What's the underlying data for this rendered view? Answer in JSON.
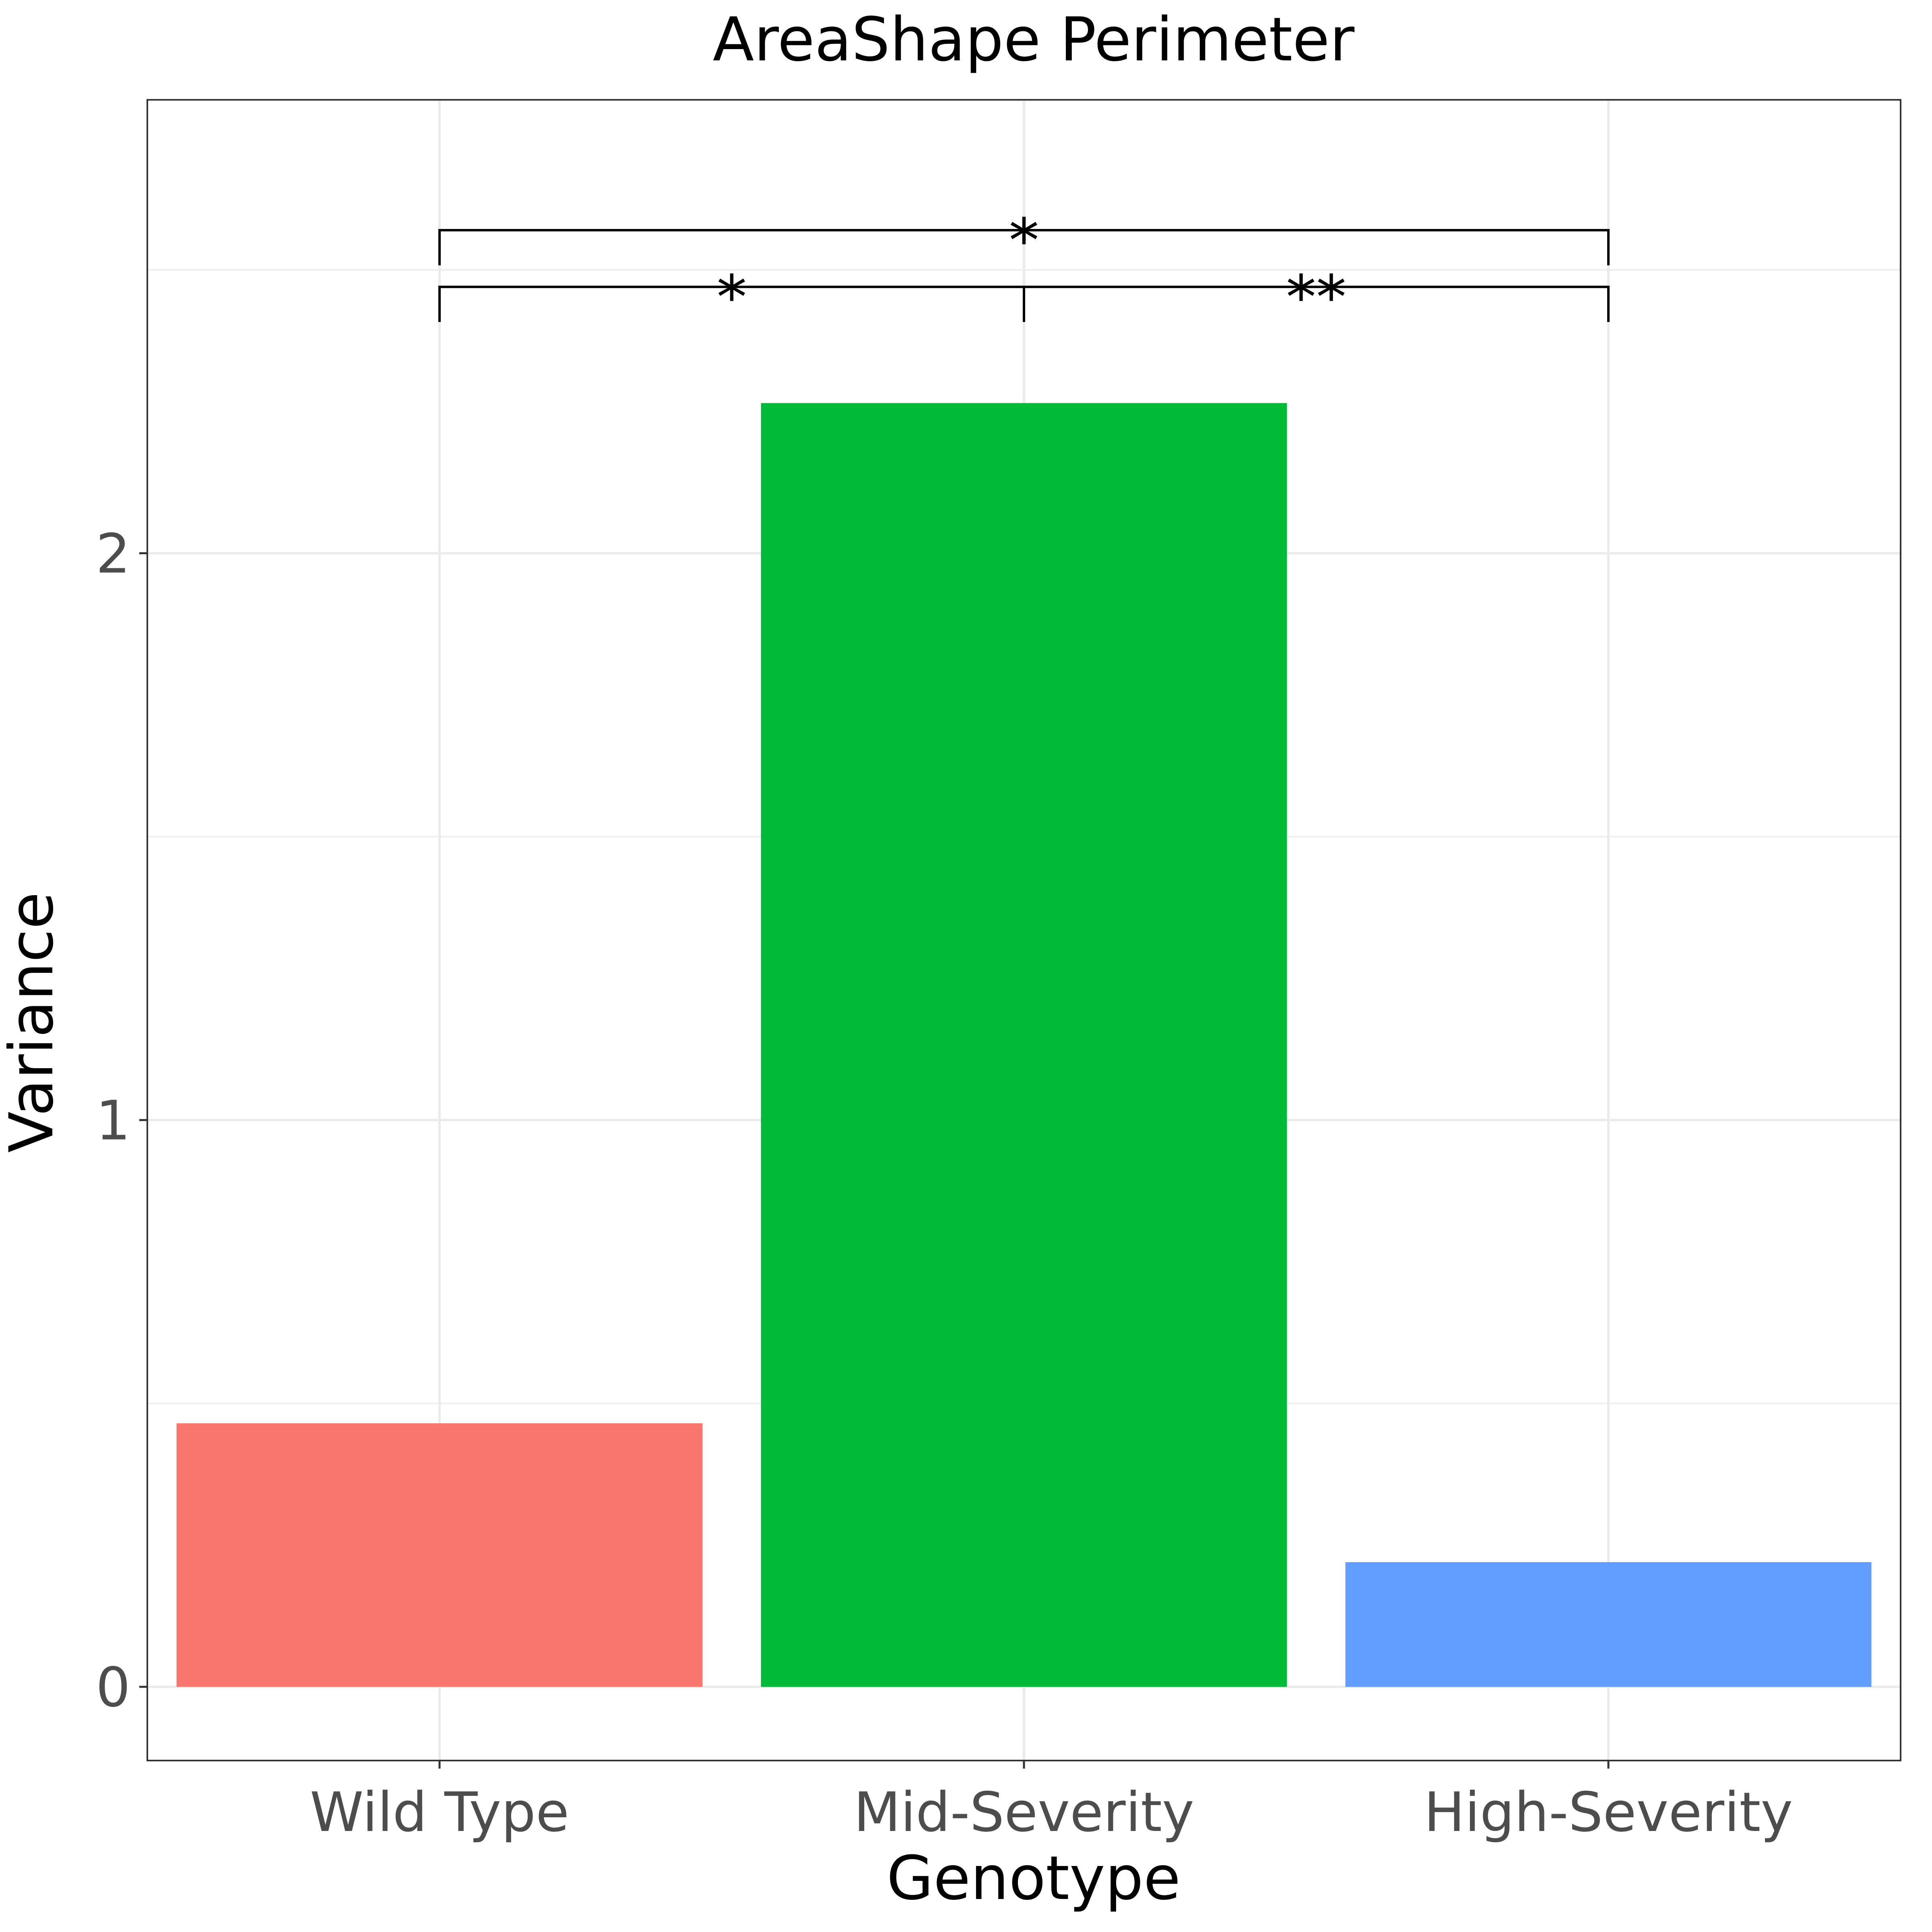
{
  "chart_data": {
    "type": "bar",
    "title": "AreaShape Perimeter",
    "xlabel": "Genotype",
    "ylabel": "Variance",
    "categories": [
      "Wild Type",
      "Mid-Severity",
      "High-Severity"
    ],
    "values": [
      0.465,
      2.265,
      0.22
    ],
    "colors": [
      "#F8766D",
      "#00BA38",
      "#619CFF"
    ],
    "ylim": [
      -0.13,
      2.8
    ],
    "yticks": [
      0,
      1,
      2
    ],
    "grid": true,
    "legend": "none",
    "significance": [
      {
        "from": "Wild Type",
        "to": "Mid-Severity",
        "label": "*",
        "y": 2.47
      },
      {
        "from": "Mid-Severity",
        "to": "High-Severity",
        "label": "**",
        "y": 2.47
      },
      {
        "from": "Wild Type",
        "to": "High-Severity",
        "label": "*",
        "y": 2.57
      }
    ]
  }
}
